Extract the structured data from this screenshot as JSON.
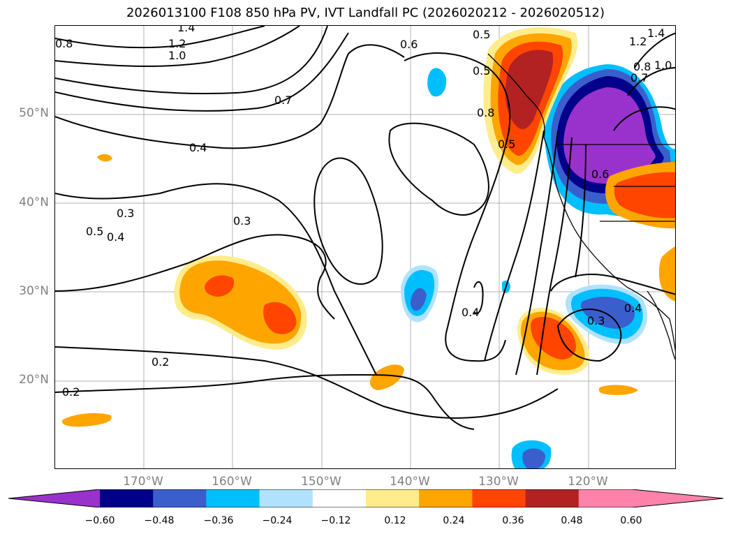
{
  "title": "2026013100 F108 850 hPa PV, IVT Landfall PC (2026020212 - 2026020512)",
  "axes": {
    "lat_labels": [
      "50°N",
      "40°N",
      "30°N",
      "20°N"
    ],
    "lon_labels": [
      "170°W",
      "160°W",
      "150°W",
      "140°W",
      "130°W",
      "120°W"
    ]
  },
  "contour_labels": [
    "1.4",
    "1.2",
    "1.0",
    "0.8",
    "0.7",
    "0.6",
    "0.5",
    "0.4",
    "0.3",
    "0.5",
    "0.4",
    "0.3",
    "0.2",
    "0.2",
    "0.4",
    "0.5",
    "0.8",
    "0.6",
    "0.3",
    "1.2",
    "1.0",
    "0.8",
    "0.7",
    "1.4",
    "0.4",
    "0.5"
  ],
  "colorbar": {
    "ticks": [
      "−0.60",
      "−0.48",
      "−0.36",
      "−0.24",
      "−0.12",
      "0.12",
      "0.24",
      "0.36",
      "0.48",
      "0.60"
    ],
    "colors": [
      "#9932CC",
      "#00008B",
      "#3A5FCD",
      "#00BFFF",
      "#B0E2FF",
      "#FFFFFF",
      "#FFEC8B",
      "#FFA500",
      "#FF4500",
      "#B22222",
      "#FF82AB",
      "#FF82AB"
    ]
  }
}
